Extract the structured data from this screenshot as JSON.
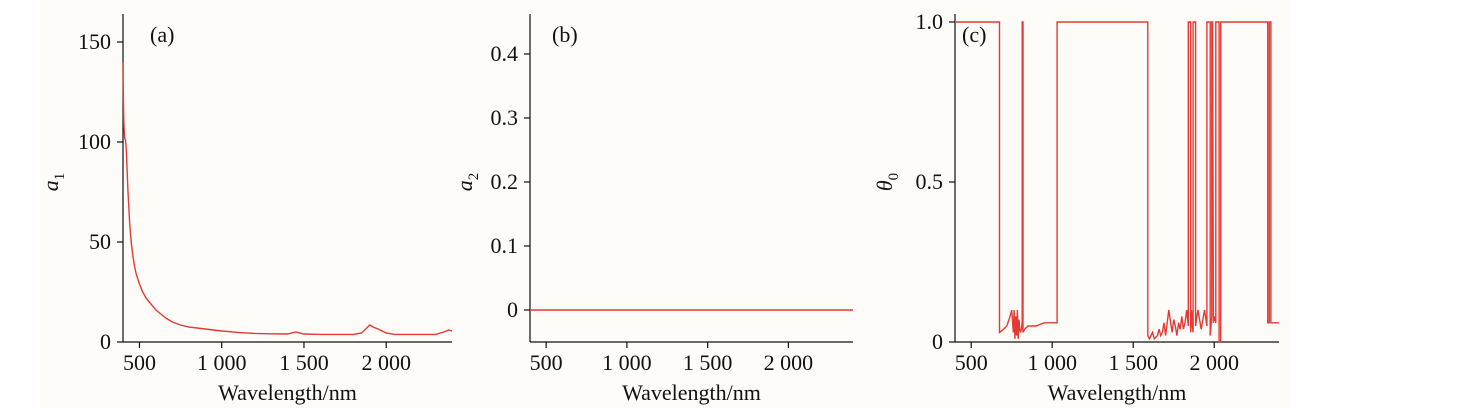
{
  "chart_data": [
    {
      "type": "line",
      "panel_label": "(a)",
      "xlabel": "Wavelength/nm",
      "ylabel": "a",
      "ylabel_subscript": "1",
      "xlim": [
        400,
        2400
      ],
      "ylim": [
        0,
        160
      ],
      "xticks": [
        500,
        1000,
        1500,
        2000
      ],
      "xtick_labels": [
        "500",
        "1 000",
        "1 500",
        "2 000"
      ],
      "yticks": [
        0,
        50,
        100,
        150
      ],
      "ytick_labels": [
        "0",
        "50",
        "100",
        "150"
      ],
      "grid": false,
      "line_color": "#e53935",
      "series": [
        {
          "x": [
            400,
            402,
            405,
            410,
            415,
            420,
            425,
            430,
            440,
            450,
            460,
            470,
            480,
            500,
            520,
            540,
            560,
            580,
            600,
            630,
            660,
            700,
            750,
            800,
            850,
            900,
            950,
            1000,
            1100,
            1200,
            1300,
            1400,
            1450,
            1500,
            1600,
            1700,
            1800,
            1850,
            1900,
            1920,
            1950,
            2000,
            2050,
            2100,
            2200,
            2300,
            2350,
            2380,
            2400
          ],
          "y": [
            140,
            125,
            110,
            102,
            101,
            96,
            86,
            76,
            60,
            50,
            43,
            38,
            34,
            29,
            25,
            22,
            20,
            18,
            16,
            14,
            12,
            10,
            8.5,
            7.5,
            7,
            6.5,
            6,
            5.5,
            4.8,
            4.3,
            4.1,
            4.0,
            5.0,
            4.0,
            3.8,
            3.8,
            3.8,
            4.5,
            8.5,
            7.5,
            6.5,
            4.5,
            3.8,
            3.8,
            3.8,
            3.8,
            5.0,
            6.0,
            5.5
          ]
        }
      ]
    },
    {
      "type": "line",
      "panel_label": "(b)",
      "xlabel": "Wavelength/nm",
      "ylabel": "a",
      "ylabel_subscript": "2",
      "xlim": [
        400,
        2400
      ],
      "ylim": [
        -0.05,
        0.45
      ],
      "xticks": [
        500,
        1000,
        1500,
        2000
      ],
      "xtick_labels": [
        "500",
        "1 000",
        "1 500",
        "2 000"
      ],
      "yticks": [
        0,
        0.1,
        0.2,
        0.3,
        0.4
      ],
      "ytick_labels": [
        "0",
        "0.1",
        "0.2",
        "0.3",
        "0.4"
      ],
      "grid": false,
      "line_color": "#e53935",
      "series": [
        {
          "x": [
            400,
            2400
          ],
          "y": [
            0,
            0
          ]
        }
      ]
    },
    {
      "type": "line",
      "panel_label": "(c)",
      "xlabel": "Wavelength/nm",
      "ylabel": "θ",
      "ylabel_subscript": "0",
      "xlim": [
        400,
        2400
      ],
      "ylim": [
        0,
        1.0
      ],
      "xticks": [
        500,
        1000,
        1500,
        2000
      ],
      "xtick_labels": [
        "500",
        "1 000",
        "1 500",
        "2 000"
      ],
      "yticks": [
        0,
        0.5,
        1.0
      ],
      "ytick_labels": [
        "0",
        "0.5",
        "1.0"
      ],
      "grid": false,
      "line_color": "#e53935",
      "series": [
        {
          "x": [
            400,
            675,
            675,
            700,
            720,
            740,
            750,
            760,
            765,
            770,
            775,
            780,
            785,
            790,
            795,
            800,
            805,
            810,
            815,
            815,
            820,
            820,
            830,
            850,
            880,
            900,
            950,
            1000,
            1030,
            1030,
            1200,
            1400,
            1590,
            1590,
            1600,
            1620,
            1630,
            1650,
            1660,
            1670,
            1680,
            1690,
            1700,
            1720,
            1740,
            1750,
            1760,
            1770,
            1780,
            1790,
            1800,
            1810,
            1820,
            1830,
            1840,
            1840,
            1855,
            1855,
            1860,
            1865,
            1870,
            1870,
            1885,
            1885,
            1890,
            1900,
            1920,
            1940,
            1955,
            1955,
            1975,
            1975,
            1980,
            1985,
            1985,
            1990,
            1995,
            2000,
            2010,
            2010,
            2030,
            2030,
            2040,
            2040,
            2050,
            2050,
            2100,
            2200,
            2330,
            2330,
            2340,
            2340,
            2350,
            2350,
            2360,
            2360,
            2400
          ],
          "y": [
            1.0,
            1.0,
            0.03,
            0.04,
            0.05,
            0.08,
            0.1,
            0.03,
            0.1,
            0.01,
            0.08,
            0.02,
            0.1,
            0.01,
            0.07,
            0.04,
            0.03,
            0.04,
            0.06,
            1.0,
            1.0,
            0.03,
            0.04,
            0.05,
            0.05,
            0.05,
            0.06,
            0.06,
            0.06,
            1.0,
            1.0,
            1.0,
            1.0,
            0.02,
            0.01,
            0.03,
            0.01,
            0.02,
            0.04,
            0.02,
            0.03,
            0.06,
            0.02,
            0.1,
            0.03,
            0.07,
            0.05,
            0.02,
            0.06,
            0.04,
            0.08,
            0.04,
            0.06,
            0.1,
            0.05,
            1.0,
            1.0,
            0.03,
            0.1,
            0.05,
            0.03,
            1.0,
            1.0,
            0.05,
            0.07,
            0.1,
            0.04,
            0.1,
            0.05,
            1.0,
            1.0,
            0.02,
            0.05,
            0.08,
            1.0,
            1.0,
            0.06,
            0.08,
            0.06,
            1.0,
            1.0,
            0.0,
            0.0,
            1.0,
            1.0,
            1.0,
            1.0,
            1.0,
            1.0,
            0.06,
            0.06,
            1.0,
            1.0,
            0.06,
            0.06,
            0.06,
            0.06
          ]
        }
      ]
    }
  ]
}
